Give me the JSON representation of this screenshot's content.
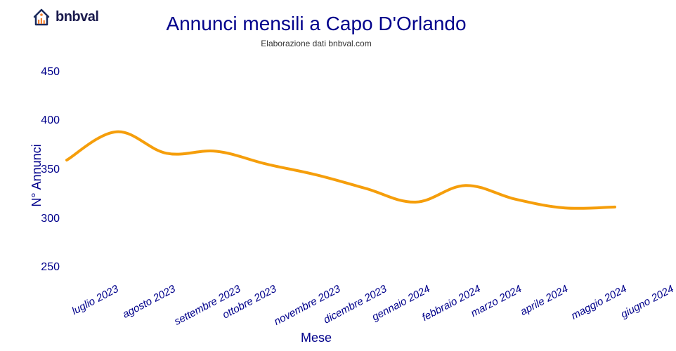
{
  "logo": {
    "text": "bnbval",
    "roof_color": "#1a2a5c",
    "bars_color": "#f08030",
    "dot_color": "#f08030"
  },
  "chart": {
    "type": "line",
    "title": "Annunci mensili a Capo D'Orlando",
    "subtitle": "Elaborazione dati bnbval.com",
    "title_color": "#00008b",
    "title_fontsize": 28,
    "subtitle_fontsize": 12,
    "subtitle_color": "#333333",
    "y_axis_title": "N° Annunci",
    "x_axis_title": "Mese",
    "axis_title_fontsize": 18,
    "axis_title_color": "#00008b",
    "tick_color": "#00008b",
    "y_tick_fontsize": 16,
    "x_tick_fontsize": 15,
    "background_color": "#ffffff",
    "line_color": "#f59e0b",
    "line_width": 4,
    "ylim": [
      240,
      470
    ],
    "yticks": [
      250,
      300,
      350,
      400,
      450
    ],
    "categories": [
      "luglio 2023",
      "agosto 2023",
      "settembre 2023",
      "ottobre 2023",
      "novembre 2023",
      "dicembre 2023",
      "gennaio 2024",
      "febbraio 2024",
      "marzo 2024",
      "aprile 2024",
      "maggio 2024",
      "giugno 2024"
    ],
    "values": [
      360,
      389,
      367,
      369,
      356,
      345,
      331,
      317,
      334,
      320,
      311,
      312
    ]
  }
}
